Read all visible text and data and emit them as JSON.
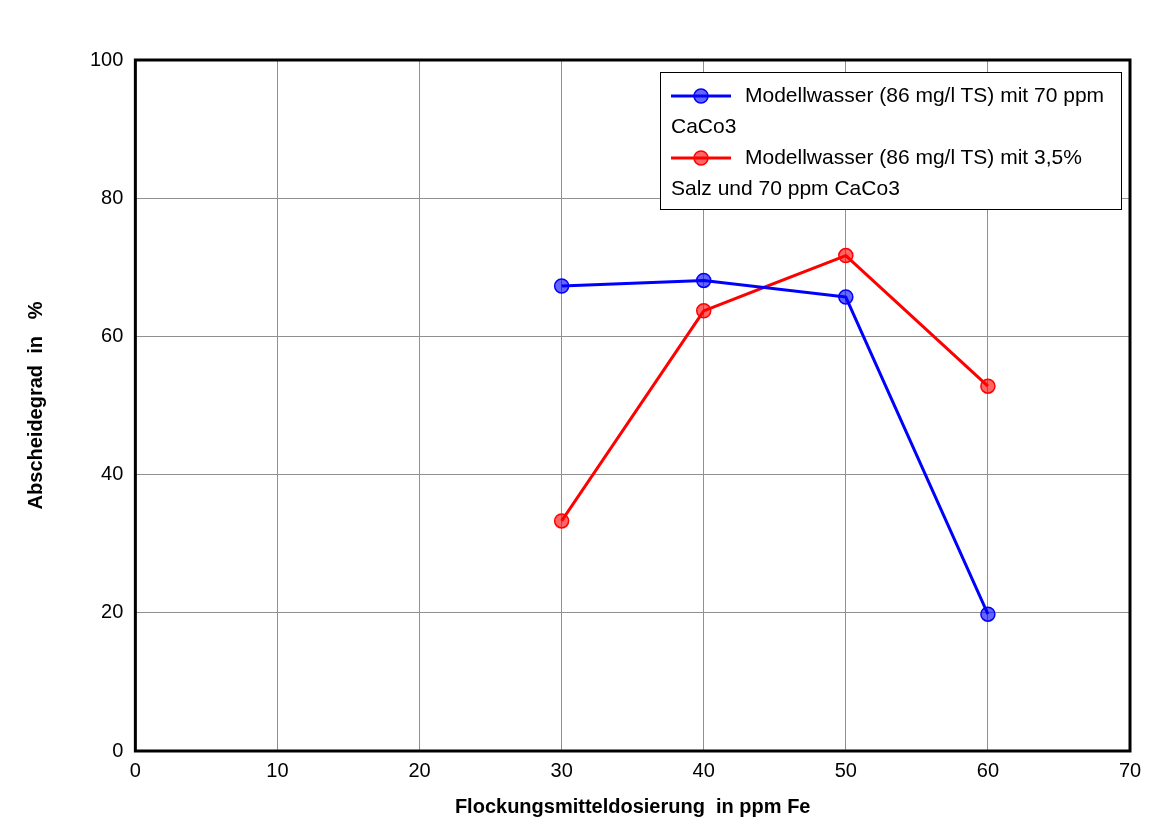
{
  "chart_data": {
    "type": "line",
    "xlabel": "Flockungsmitteldosierung  in ppm Fe",
    "ylabel": "Abscheidegrad  in   %",
    "x": [
      30,
      40,
      50,
      60
    ],
    "series": [
      {
        "name": "Modellwasser (86 mg/l TS) mit 70 ppm CaCo3",
        "color": "#0000ff",
        "values": [
          67.3,
          68.1,
          65.7,
          19.8
        ]
      },
      {
        "name": "Modellwasser (86 mg/l TS) mit 3,5% Salz und 70 ppm CaCo3",
        "color": "#ff0000",
        "values": [
          33.3,
          63.7,
          71.7,
          52.8
        ]
      }
    ],
    "xlim": [
      0,
      70
    ],
    "xticks": [
      0,
      10,
      20,
      30,
      40,
      50,
      60,
      70
    ],
    "ylim": [
      0,
      100
    ],
    "yticks": [
      0,
      20,
      40,
      60,
      80,
      100
    ],
    "grid": true,
    "legend": "top right",
    "marker": "circle",
    "line_style": "solid"
  }
}
